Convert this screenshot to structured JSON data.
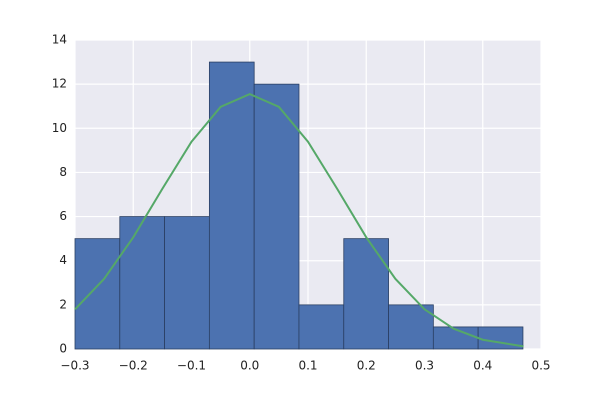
{
  "chart_data": {
    "type": "histogram",
    "bins": [
      -0.3,
      -0.2231,
      -0.1462,
      -0.0693,
      0.0076,
      0.0845,
      0.1614,
      0.2383,
      0.3152,
      0.3921,
      0.469
    ],
    "values": [
      5,
      6,
      6,
      13,
      12,
      2,
      5,
      2,
      1,
      1
    ],
    "color": "#4c72b0",
    "curve": {
      "x": [
        -0.3,
        -0.25,
        -0.2,
        -0.15,
        -0.1,
        -0.05,
        0,
        0.05,
        0.1,
        0.15,
        0.2,
        0.25,
        0.3,
        0.35,
        0.4,
        0.47
      ],
      "values": [
        1.8,
        3.18,
        5.06,
        7.26,
        9.39,
        10.97,
        11.55,
        10.97,
        9.39,
        7.26,
        5.06,
        3.18,
        1.8,
        0.92,
        0.42,
        0.12
      ],
      "color": "#55a868"
    },
    "xlim": [
      -0.3,
      0.5
    ],
    "xticks": [
      {
        "value": -0.3,
        "label": "−0.3"
      },
      {
        "value": -0.2,
        "label": "−0.2"
      },
      {
        "value": -0.1,
        "label": "−0.1"
      },
      {
        "value": 0,
        "label": "0.0"
      },
      0.1,
      0.2,
      0.3,
      0.4,
      0.5
    ],
    "ylim": [
      0,
      14
    ],
    "yticks": [
      0,
      2,
      4,
      6,
      8,
      10,
      12,
      14
    ],
    "grid": true
  }
}
